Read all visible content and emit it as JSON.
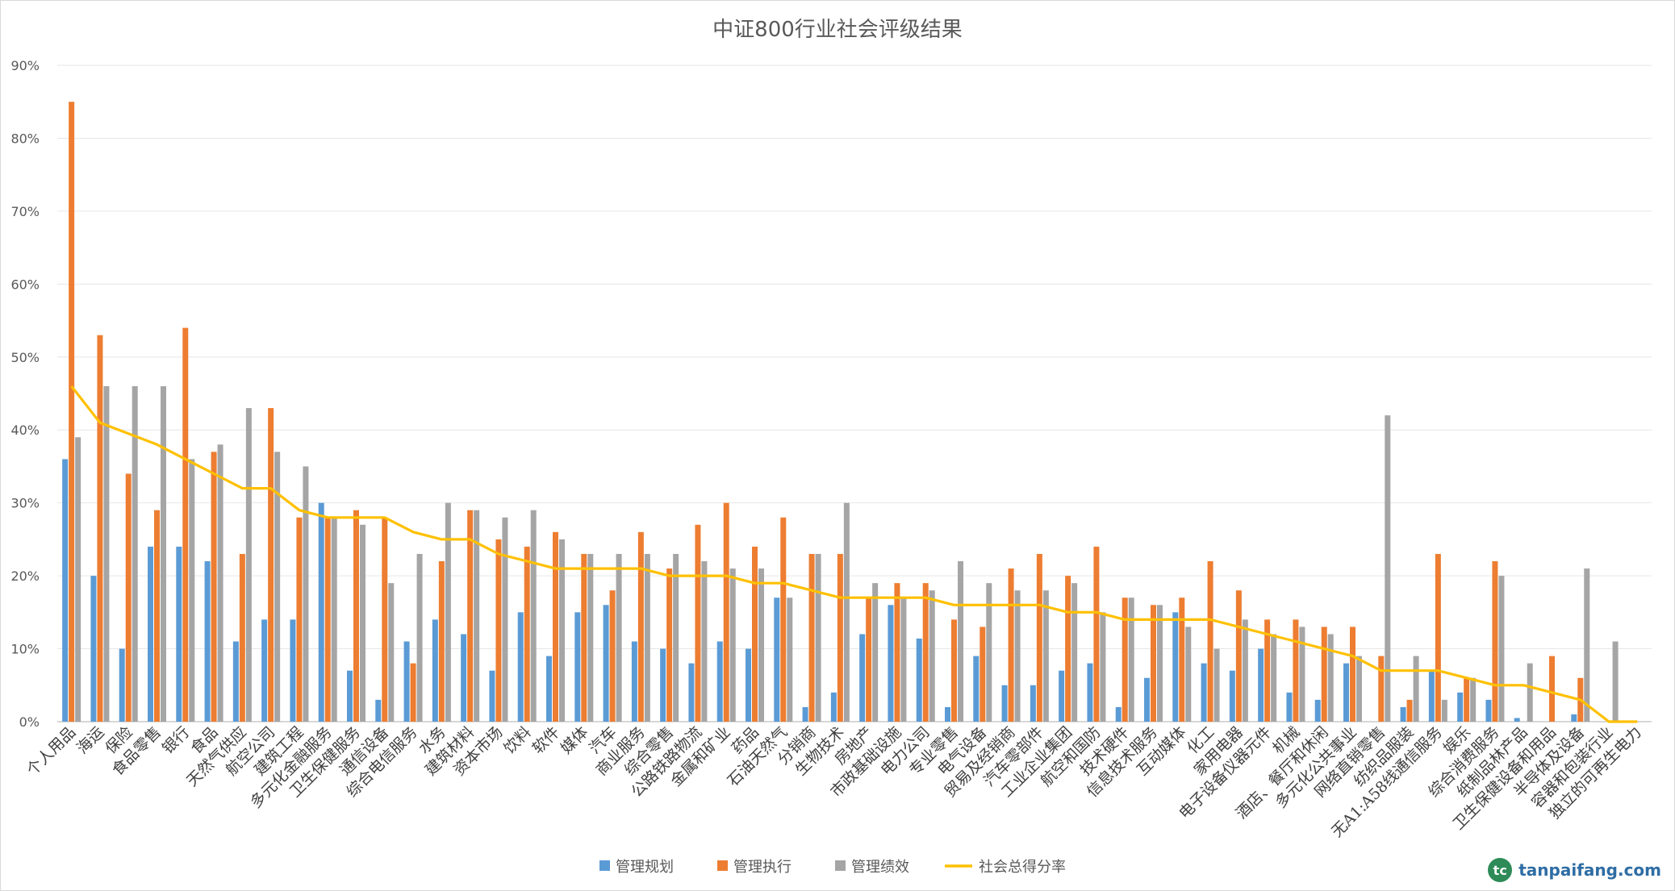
{
  "chart_data": {
    "type": "bar",
    "title": "中证800行业社会评级结果",
    "xlabel": "",
    "ylabel": "",
    "ylim": [
      0,
      90
    ],
    "yticks": [
      "0%",
      "10%",
      "20%",
      "30%",
      "40%",
      "50%",
      "60%",
      "70%",
      "80%",
      "90%"
    ],
    "grid": true,
    "legend_position": "bottom",
    "categories": [
      "个人用品",
      "海运",
      "保险",
      "食品零售",
      "银行",
      "食品",
      "天然气供应",
      "航空公司",
      "建筑工程",
      "多元化金融服务",
      "卫生保健服务",
      "通信设备",
      "综合电信服务",
      "水务",
      "建筑材料",
      "资本市场",
      "饮料",
      "软件",
      "媒体",
      "汽车",
      "商业服务",
      "综合零售",
      "公路铁路物流",
      "金属和矿业",
      "药品",
      "石油天然气",
      "分销商",
      "生物技术",
      "房地产",
      "市政基础设施",
      "电力公司",
      "专业零售",
      "电气设备",
      "贸易及经销商",
      "汽车零部件",
      "工业企业集团",
      "航空和国防",
      "技术硬件",
      "信息技术服务",
      "互动媒体",
      "化工",
      "家用电器",
      "电子设备仪器元件",
      "机械",
      "酒店、餐厅和休闲",
      "多元化公共事业",
      "网络直销零售",
      "纺织品服装",
      "无A1:A58线通信服务",
      "娱乐",
      "综合消费服务",
      "纸制品林产品",
      "卫生保健设备和用品",
      "半导体及设备",
      "容器和包装行业",
      "独立的可再生电力"
    ],
    "series": [
      {
        "name": "管理规划",
        "kind": "bar",
        "color": "#5b9bd5",
        "values": [
          36,
          20,
          10,
          24,
          24,
          22,
          11,
          14,
          14,
          30,
          7,
          3,
          11,
          14,
          12,
          7,
          15,
          9,
          15,
          16,
          11,
          10,
          8,
          11,
          10,
          17,
          2,
          4,
          12,
          16,
          11.4,
          2,
          9,
          5,
          5,
          7,
          8,
          2,
          6,
          15,
          8,
          7,
          10,
          4,
          3,
          8,
          0,
          2,
          7,
          4,
          3,
          0.5,
          0,
          1,
          0,
          0
        ]
      },
      {
        "name": "管理执行",
        "kind": "bar",
        "color": "#ed7d31",
        "values": [
          85,
          53,
          34,
          29,
          54,
          37,
          23,
          43,
          28,
          28,
          29,
          28,
          8,
          22,
          29,
          25,
          24,
          26,
          23,
          18,
          26,
          21,
          27,
          30,
          24,
          28,
          23,
          23,
          17,
          19,
          19,
          14,
          13,
          21,
          23,
          20,
          24,
          17,
          16,
          17,
          22,
          18,
          14,
          14,
          13,
          13,
          9,
          3,
          23,
          6,
          22,
          0,
          9,
          6,
          0,
          0
        ]
      },
      {
        "name": "管理绩效",
        "kind": "bar",
        "color": "#a5a5a5",
        "values": [
          39,
          46,
          46,
          46,
          36,
          38,
          43,
          37,
          35,
          28,
          27,
          19,
          23,
          30,
          29,
          28,
          29,
          25,
          23,
          23,
          23,
          23,
          22,
          21,
          21,
          17,
          23,
          30,
          19,
          17,
          18,
          22,
          19,
          18,
          18,
          19,
          15,
          17,
          16,
          13,
          10,
          14,
          12,
          13,
          12,
          9,
          42,
          9,
          3,
          6,
          20,
          8,
          0,
          21,
          11,
          0
        ]
      },
      {
        "name": "社会总得分率",
        "kind": "line",
        "color": "#ffc000",
        "values": [
          46,
          41,
          39.5,
          38,
          36,
          34,
          32,
          32,
          29,
          28,
          28,
          28,
          26,
          25,
          25,
          23,
          22,
          21,
          21,
          21,
          21,
          20,
          20,
          20,
          19,
          19,
          18,
          17,
          17,
          17,
          17,
          16,
          16,
          16,
          16,
          15,
          15,
          14,
          14,
          14,
          14,
          13,
          12,
          11,
          10,
          9,
          7,
          7,
          7,
          6,
          5,
          5,
          4,
          3,
          0,
          0
        ]
      }
    ]
  },
  "watermark": {
    "logo_glyph": "tc",
    "text": "tanpaifang.com"
  }
}
